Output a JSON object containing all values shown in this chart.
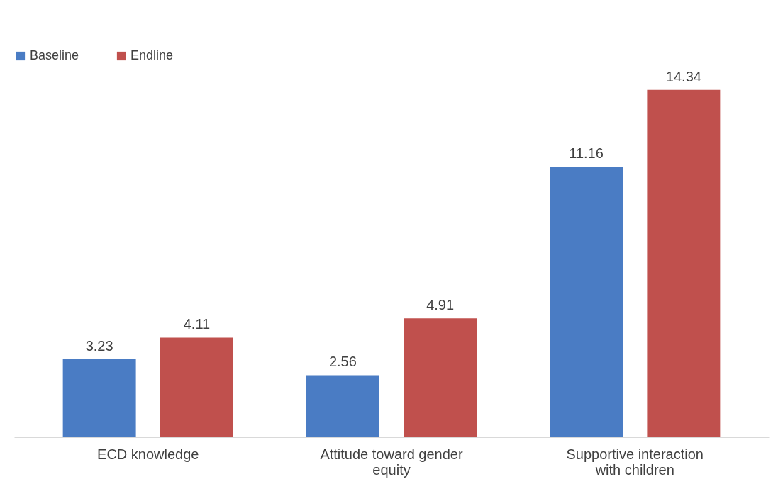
{
  "chart_data": {
    "type": "bar",
    "categories": [
      "ECD knowledge",
      "Attitude toward gender equity",
      "Supportive interaction with children"
    ],
    "series": [
      {
        "name": "Baseline",
        "color": "#4a7cc4",
        "values": [
          3.23,
          2.56,
          11.16
        ]
      },
      {
        "name": "Endline",
        "color": "#c0504d",
        "values": [
          4.11,
          4.91,
          14.34
        ]
      }
    ],
    "data_labels": true,
    "legend": "top left",
    "grid": false,
    "tick_labels": "x"
  }
}
